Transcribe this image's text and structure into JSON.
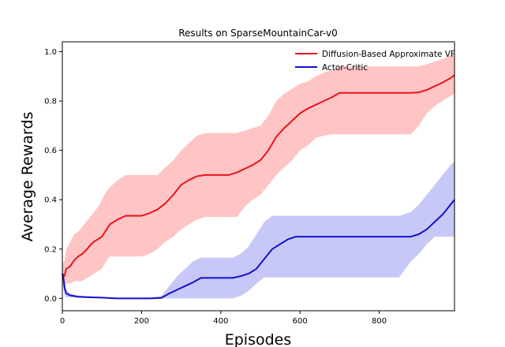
{
  "chart_data": {
    "type": "line",
    "title": "Results on SparseMountainCar-v0",
    "xlabel": "Episodes",
    "ylabel": "Average Rewards",
    "xlim": [
      0,
      990
    ],
    "ylim": [
      -0.05,
      1.04
    ],
    "xticks": [
      0,
      200,
      400,
      600,
      800
    ],
    "xtick_labels": [
      "0",
      "200",
      "400",
      "600",
      "800"
    ],
    "yticks": [
      0.0,
      0.2,
      0.4,
      0.6,
      0.8,
      1.0
    ],
    "ytick_labels": [
      "0.0",
      "0.2",
      "0.4",
      "0.6",
      "0.8",
      "1.0"
    ],
    "grid": false,
    "legend_position": "top-right",
    "series": [
      {
        "name": "Diffusion-Based Approximate VF",
        "color": "#e8141c",
        "band_color": "#ffc4c4",
        "x": [
          0,
          5,
          10,
          20,
          30,
          40,
          50,
          60,
          70,
          80,
          90,
          100,
          110,
          120,
          140,
          160,
          180,
          200,
          220,
          240,
          260,
          280,
          300,
          320,
          340,
          360,
          380,
          400,
          420,
          440,
          460,
          480,
          500,
          520,
          540,
          560,
          580,
          600,
          620,
          640,
          660,
          680,
          700,
          720,
          740,
          760,
          780,
          800,
          820,
          840,
          860,
          880,
          900,
          920,
          940,
          960,
          980,
          990
        ],
        "y": [
          0.1,
          0.09,
          0.12,
          0.13,
          0.155,
          0.17,
          0.18,
          0.195,
          0.215,
          0.23,
          0.24,
          0.25,
          0.275,
          0.3,
          0.32,
          0.335,
          0.335,
          0.335,
          0.345,
          0.36,
          0.385,
          0.42,
          0.46,
          0.48,
          0.495,
          0.5,
          0.5,
          0.5,
          0.5,
          0.51,
          0.525,
          0.54,
          0.56,
          0.6,
          0.655,
          0.69,
          0.72,
          0.75,
          0.77,
          0.785,
          0.8,
          0.815,
          0.833,
          0.833,
          0.833,
          0.833,
          0.833,
          0.833,
          0.833,
          0.833,
          0.833,
          0.833,
          0.835,
          0.845,
          0.86,
          0.875,
          0.893,
          0.905
        ],
        "lower": [
          0.07,
          0.05,
          0.06,
          0.06,
          0.07,
          0.07,
          0.07,
          0.08,
          0.09,
          0.1,
          0.11,
          0.12,
          0.15,
          0.17,
          0.17,
          0.17,
          0.17,
          0.17,
          0.18,
          0.2,
          0.23,
          0.25,
          0.28,
          0.3,
          0.32,
          0.33,
          0.33,
          0.33,
          0.33,
          0.33,
          0.37,
          0.4,
          0.42,
          0.46,
          0.5,
          0.53,
          0.56,
          0.6,
          0.62,
          0.65,
          0.66,
          0.665,
          0.665,
          0.665,
          0.665,
          0.665,
          0.665,
          0.665,
          0.665,
          0.665,
          0.665,
          0.665,
          0.7,
          0.75,
          0.78,
          0.8,
          0.82,
          0.83
        ],
        "upper": [
          0.14,
          0.15,
          0.2,
          0.23,
          0.26,
          0.27,
          0.29,
          0.31,
          0.33,
          0.35,
          0.37,
          0.4,
          0.43,
          0.45,
          0.48,
          0.5,
          0.5,
          0.5,
          0.5,
          0.5,
          0.53,
          0.56,
          0.6,
          0.63,
          0.66,
          0.67,
          0.67,
          0.67,
          0.67,
          0.67,
          0.68,
          0.69,
          0.7,
          0.74,
          0.8,
          0.83,
          0.85,
          0.87,
          0.88,
          0.9,
          0.915,
          0.925,
          0.94,
          0.94,
          0.94,
          0.94,
          0.94,
          0.94,
          0.94,
          0.94,
          0.94,
          0.94,
          0.94,
          0.95,
          0.96,
          0.97,
          0.985,
          0.99
        ]
      },
      {
        "name": "Actor-Critic",
        "color": "#1111cc",
        "band_color": "#c8c8f8",
        "x": [
          0,
          3,
          6,
          10,
          20,
          40,
          60,
          80,
          100,
          120,
          140,
          160,
          180,
          200,
          220,
          250,
          270,
          290,
          310,
          330,
          350,
          370,
          390,
          410,
          430,
          450,
          470,
          490,
          510,
          530,
          550,
          570,
          590,
          600,
          650,
          700,
          750,
          800,
          850,
          880,
          900,
          920,
          940,
          960,
          980,
          990
        ],
        "y": [
          0.1,
          0.08,
          0.04,
          0.02,
          0.012,
          0.007,
          0.005,
          0.004,
          0.003,
          0.001,
          0.0,
          0.0,
          0.0,
          0.0,
          0.0,
          0.002,
          0.02,
          0.035,
          0.05,
          0.065,
          0.083,
          0.083,
          0.083,
          0.083,
          0.083,
          0.09,
          0.1,
          0.12,
          0.16,
          0.2,
          0.22,
          0.24,
          0.25,
          0.25,
          0.25,
          0.25,
          0.25,
          0.25,
          0.25,
          0.25,
          0.26,
          0.28,
          0.31,
          0.34,
          0.38,
          0.4
        ],
        "lower": [
          0.06,
          0.04,
          0.01,
          0.005,
          0.004,
          0.003,
          0.002,
          0.001,
          0.0,
          0.0,
          0.0,
          0.0,
          0.0,
          0.0,
          0.0,
          0.0,
          0.0,
          0.0,
          0.0,
          0.0,
          0.0,
          0.0,
          0.0,
          0.0,
          0.0,
          0.01,
          0.03,
          0.06,
          0.085,
          0.085,
          0.085,
          0.085,
          0.085,
          0.085,
          0.085,
          0.085,
          0.085,
          0.085,
          0.085,
          0.15,
          0.18,
          0.22,
          0.25,
          0.25,
          0.25,
          0.25
        ],
        "upper": [
          0.14,
          0.12,
          0.07,
          0.035,
          0.02,
          0.012,
          0.009,
          0.007,
          0.005,
          0.004,
          0.003,
          0.003,
          0.003,
          0.003,
          0.003,
          0.01,
          0.05,
          0.09,
          0.12,
          0.15,
          0.165,
          0.165,
          0.165,
          0.165,
          0.165,
          0.18,
          0.21,
          0.26,
          0.31,
          0.335,
          0.335,
          0.335,
          0.335,
          0.335,
          0.335,
          0.335,
          0.335,
          0.335,
          0.335,
          0.35,
          0.38,
          0.42,
          0.46,
          0.5,
          0.54,
          0.555
        ]
      }
    ]
  }
}
